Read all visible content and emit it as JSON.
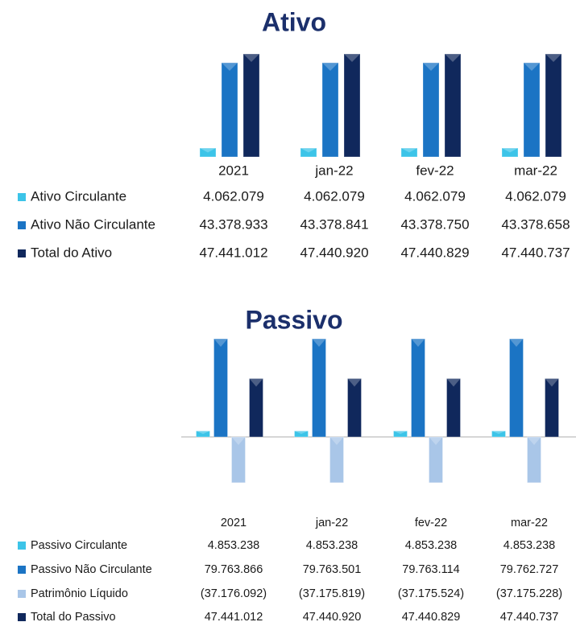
{
  "chart_data": [
    {
      "type": "bar",
      "title": "Ativo",
      "categories": [
        "2021",
        "jan-22",
        "fev-22",
        "mar-22"
      ],
      "series": [
        {
          "name": "Ativo Circulante",
          "color": "#3cc4e8",
          "values": [
            4062079,
            4062079,
            4062079,
            4062079
          ],
          "value_labels": [
            "4.062.079",
            "4.062.079",
            "4.062.079",
            "4.062.079"
          ]
        },
        {
          "name": "Ativo Não Circulante",
          "color": "#1b74c4",
          "values": [
            43378933,
            43378841,
            43378750,
            43378658
          ],
          "value_labels": [
            "43.378.933",
            "43.378.841",
            "43.378.750",
            "43.378.658"
          ]
        },
        {
          "name": "Total do Ativo",
          "color": "#10285c",
          "values": [
            47441012,
            47440920,
            47440829,
            47440737
          ],
          "value_labels": [
            "47.441.012",
            "47.440.920",
            "47.440.829",
            "47.440.737"
          ]
        }
      ]
    },
    {
      "type": "bar",
      "title": "Passivo",
      "categories": [
        "2021",
        "jan-22",
        "fev-22",
        "mar-22"
      ],
      "series": [
        {
          "name": "Passivo Circulante",
          "color": "#3cc4e8",
          "values": [
            4853238,
            4853238,
            4853238,
            4853238
          ],
          "value_labels": [
            "4.853.238",
            "4.853.238",
            "4.853.238",
            "4.853.238"
          ]
        },
        {
          "name": "Passivo Não Circulante",
          "color": "#1b74c4",
          "values": [
            79763866,
            79763501,
            79763114,
            79762727
          ],
          "value_labels": [
            "79.763.866",
            "79.763.501",
            "79.763.114",
            "79.762.727"
          ]
        },
        {
          "name": "Patrimônio Líquido",
          "color": "#a9c6e8",
          "values": [
            -37176092,
            -37175819,
            -37175524,
            -37175228
          ],
          "value_labels": [
            "(37.176.092)",
            "(37.175.819)",
            "(37.175.524)",
            "(37.175.228)"
          ]
        },
        {
          "name": "Total do Passivo",
          "color": "#10285c",
          "values": [
            47441012,
            47440920,
            47440829,
            47440737
          ],
          "value_labels": [
            "47.441.012",
            "47.440.920",
            "47.440.829",
            "47.440.737"
          ]
        }
      ]
    }
  ]
}
